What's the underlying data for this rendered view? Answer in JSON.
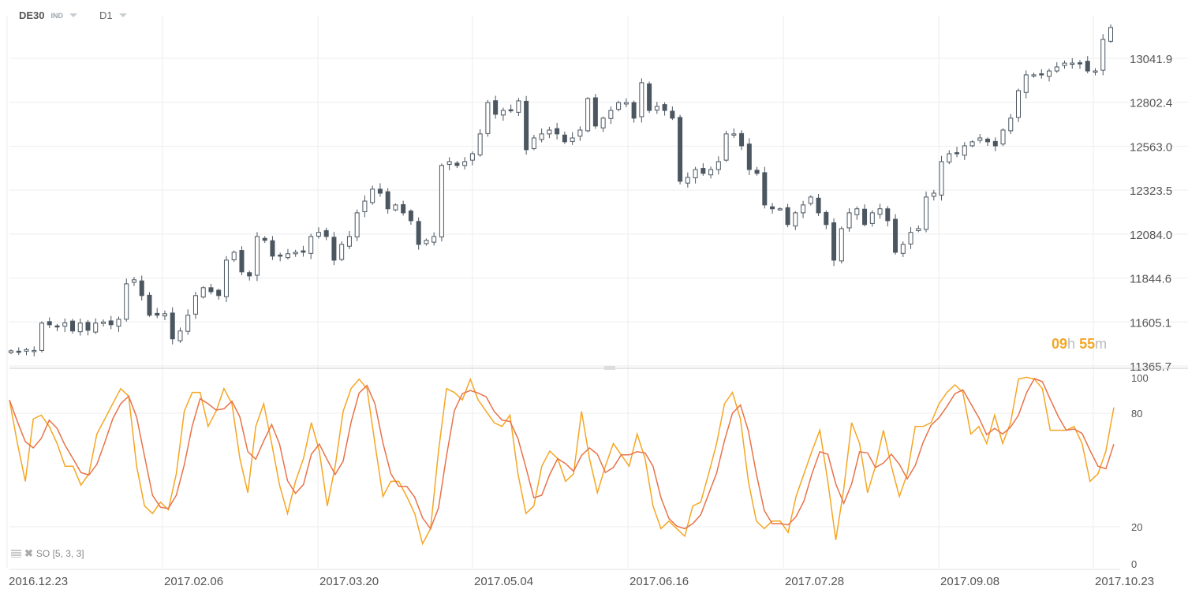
{
  "header": {
    "symbol": "DE30",
    "type": "IND",
    "timeframe": "D1"
  },
  "timer": {
    "hours": "09",
    "h_unit": "h",
    "minutes": "55",
    "m_unit": "m"
  },
  "indicator": {
    "label": "SO [5, 3, 3]"
  },
  "colors": {
    "bear": "#4b5660",
    "bull": "#ffffff",
    "k_line": "#f5a623",
    "d_line": "#e8734a",
    "grid": "#eeeeee"
  },
  "chart_data": [
    {
      "type": "candlestick",
      "y_ticks": [
        "13041.9",
        "12802.4",
        "12563.0",
        "12323.5",
        "12084.0",
        "11844.6",
        "11605.1",
        "11365.7"
      ],
      "ylim": [
        11365.7,
        13250
      ],
      "x_ticks": [
        "2016.12.23",
        "2017.02.06",
        "2017.03.20",
        "2017.05.04",
        "2017.06.16",
        "2017.07.28",
        "2017.09.08",
        "2017.10.23"
      ],
      "grid": true,
      "closes": [
        11448,
        11440,
        11455,
        11450,
        11599,
        11590,
        11580,
        11600,
        11556,
        11599,
        11560,
        11599,
        11605,
        11590,
        11620,
        11813,
        11835,
        11749,
        11642,
        11642,
        11650,
        11513,
        11556,
        11642,
        11749,
        11792,
        11770,
        11749,
        11942,
        11985,
        11878,
        11856,
        12071,
        12050,
        11964,
        11964,
        11977,
        11985,
        11985,
        12071,
        12093,
        12071,
        11942,
        12028,
        12071,
        12200,
        12264,
        12329,
        12307,
        12222,
        12243,
        12200,
        12157,
        12028,
        12050,
        12071,
        12458,
        12479,
        12458,
        12479,
        12522,
        12630,
        12801,
        12737,
        12758,
        12758,
        12810,
        12544,
        12608,
        12630,
        12651,
        12630,
        12587,
        12608,
        12651,
        12823,
        12673,
        12716,
        12758,
        12801,
        12801,
        12716,
        12909,
        12758,
        12780,
        12758,
        12716,
        12372,
        12393,
        12436,
        12415,
        12436,
        12479,
        12630,
        12630,
        12565,
        12436,
        12415,
        12243,
        12222,
        12222,
        12136,
        12200,
        12243,
        12286,
        12200,
        12136,
        11942,
        12114,
        12200,
        12222,
        12136,
        12200,
        12222,
        12157,
        11985,
        12028,
        12093,
        12114,
        12286,
        12307,
        12479,
        12522,
        12522,
        12565,
        12587,
        12608,
        12587,
        12565,
        12651,
        12716,
        12866,
        12952,
        12952,
        12952,
        12973,
        12995,
        13016,
        13016,
        13016,
        12973,
        12973,
        13145,
        13210
      ]
    },
    {
      "type": "line",
      "name": "SO [5, 3, 3]",
      "ylim": [
        0,
        100
      ],
      "y_ticks": [
        "100",
        "80",
        "20",
        "0"
      ],
      "y_tick_values": [
        100,
        80,
        20,
        0
      ],
      "d_smoothing": 3,
      "k": [
        87,
        64,
        44,
        77,
        79,
        73,
        64,
        52,
        52,
        42,
        48,
        69,
        77,
        85,
        93,
        89,
        52,
        31,
        27,
        33,
        29,
        48,
        81,
        91,
        91,
        73,
        81,
        93,
        85,
        56,
        38,
        73,
        85,
        64,
        42,
        27,
        44,
        56,
        75,
        60,
        31,
        52,
        81,
        93,
        98,
        93,
        64,
        36,
        44,
        44,
        36,
        27,
        11,
        19,
        60,
        93,
        91,
        87,
        98,
        87,
        81,
        75,
        73,
        79,
        48,
        27,
        31,
        52,
        60,
        56,
        44,
        48,
        81,
        56,
        38,
        52,
        64,
        58,
        52,
        69,
        56,
        31,
        19,
        23,
        19,
        15,
        31,
        33,
        48,
        64,
        85,
        91,
        77,
        44,
        23,
        19,
        23,
        23,
        17,
        36,
        48,
        60,
        71,
        44,
        13,
        40,
        75,
        64,
        38,
        52,
        71,
        52,
        36,
        48,
        73,
        73,
        75,
        85,
        91,
        95,
        91,
        69,
        73,
        64,
        79,
        64,
        75,
        98,
        99,
        98,
        93,
        71,
        71,
        71,
        73,
        64,
        44,
        48,
        60,
        83
      ]
    }
  ]
}
